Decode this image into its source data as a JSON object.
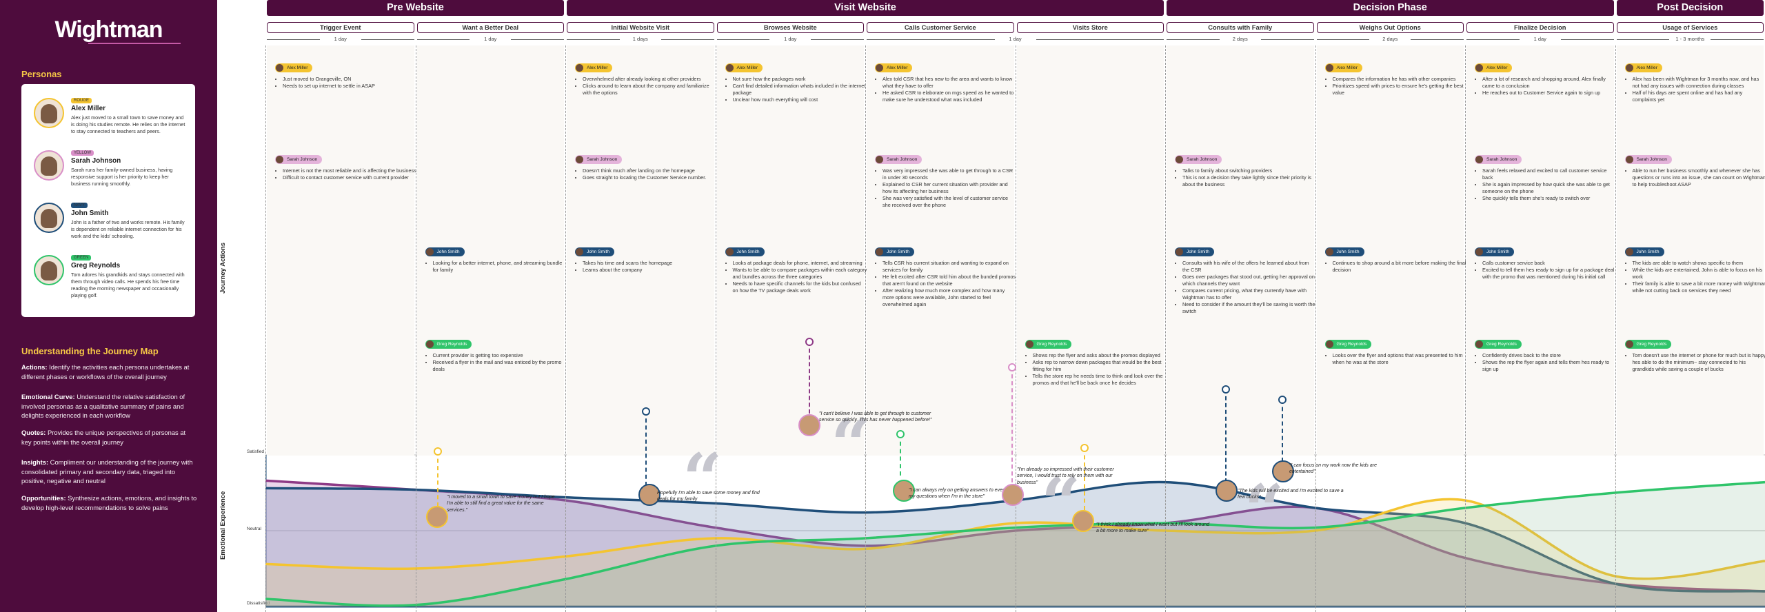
{
  "brand": "Wightman",
  "personas_title": "Personas",
  "personas": [
    {
      "tag": "ROUGE",
      "name": "Alex Miller",
      "desc": "Alex just moved to a small town to save money and is doing his studies remote. He relies on the internet to stay connected to teachers and peers.",
      "color": "#f4c430"
    },
    {
      "tag": "YELLOW",
      "name": "Sarah Johnson",
      "desc": "Sarah runs her family-owned business, having responsive support is her priority to keep her business running smoothly.",
      "color": "#d98fc8"
    },
    {
      "tag": "NAVY",
      "name": "John Smith",
      "desc": "John is a father of two and works remote. His family is dependent on reliable internet connection for his work and the kids' schooling.",
      "color": "#1f4e79"
    },
    {
      "tag": "GREEN",
      "name": "Greg Reynolds",
      "desc": "Tom adores his grandkids and stays connected with them through video calls. He spends his free time reading the morning newspaper and occasionally playing golf.",
      "color": "#2fc46a"
    }
  ],
  "ujm_title": "Understanding the Journey Map",
  "ujm": [
    {
      "label": "Actions:",
      "text": " Identify the activities each persona undertakes at different phases or workflows of the overall journey"
    },
    {
      "label": "Emotional Curve:",
      "text": " Understand the relative satisfaction of involved personas as a qualitative summary of pains and delights experienced in each workflow"
    },
    {
      "label": "Quotes:",
      "text": "  Provides the unique perspectives of personas at key points within the overall journey"
    },
    {
      "label": "Insights:",
      "text": " Compliment our understanding of the journey with consolidated primary and secondary data, triaged into positive, negative and neutral"
    },
    {
      "label": "Opportunities:",
      "text": " Synthesize actions, emotions, and insights to develop high-level recommendations to solve pains"
    }
  ],
  "axis": {
    "actions": "Journey Actions",
    "emotion": "Emotional Experience",
    "satisfied": "Satisfied",
    "neutral": "Neutral",
    "dissatisfied": "Dissatisfied"
  },
  "phases": [
    {
      "name": "Pre Website",
      "start": 0,
      "span": 2
    },
    {
      "name": "Visit Website",
      "start": 2,
      "span": 4
    },
    {
      "name": "Decision Phase",
      "start": 6,
      "span": 3
    },
    {
      "name": "Post Decision",
      "start": 9,
      "span": 1
    }
  ],
  "steps": [
    "Trigger Event",
    "Want a Better Deal",
    "Initial Website Visit",
    "Browses Website",
    "Calls Customer Service",
    "Visits Store",
    "Consults with Family",
    "Weighs Out Options",
    "Finalize Decision",
    "Usage of Services"
  ],
  "durations": [
    {
      "label": "1 day",
      "start": 0,
      "span": 1
    },
    {
      "label": "1 day",
      "start": 1,
      "span": 1
    },
    {
      "label": "1 days",
      "start": 2,
      "span": 1
    },
    {
      "label": "1 day",
      "start": 3,
      "span": 1
    },
    {
      "label": "1 day",
      "start": 4,
      "span": 2
    },
    {
      "label": "2 days",
      "start": 6,
      "span": 1
    },
    {
      "label": "2 days",
      "start": 7,
      "span": 1
    },
    {
      "label": "1 day",
      "start": 8,
      "span": 1
    },
    {
      "label": "1 - 3 months",
      "start": 9,
      "span": 1
    }
  ],
  "cards": [
    {
      "col": 0,
      "row": 0,
      "persona": 0,
      "items": [
        "Just moved to Orangeville, ON",
        "Needs to set up internet to settle in ASAP"
      ]
    },
    {
      "col": 0,
      "row": 1,
      "persona": 1,
      "items": [
        "Internet is not the most reliable and is affecting the business",
        "Difficult to contact customer service with current provider"
      ]
    },
    {
      "col": 1,
      "row": 2,
      "persona": 2,
      "items": [
        "Looking for a better internet, phone, and streaming bundle for family"
      ]
    },
    {
      "col": 1,
      "row": 3,
      "persona": 3,
      "items": [
        "Current provider is getting too expensive",
        "Received a flyer in the mail and was enticed by the promo deals"
      ]
    },
    {
      "col": 2,
      "row": 0,
      "persona": 0,
      "items": [
        "Overwhelmed after already looking at other providers",
        "Clicks around to learn about the company and familiarize with the options"
      ]
    },
    {
      "col": 2,
      "row": 1,
      "persona": 1,
      "items": [
        "Doesn't think much after landing on the homepage",
        "Goes straight to locating the Customer Service number."
      ]
    },
    {
      "col": 2,
      "row": 2,
      "persona": 2,
      "items": [
        "Takes his time and scans the homepage",
        "Learns about the company"
      ]
    },
    {
      "col": 3,
      "row": 0,
      "persona": 0,
      "items": [
        "Not sure how the packages work",
        "Can't find detailed information whats included in the internet package",
        "Unclear how much everything will cost"
      ]
    },
    {
      "col": 3,
      "row": 2,
      "persona": 2,
      "items": [
        "Looks at package deals for phone, internet, and streaming",
        "Wants to be able to compare packages within each category and bundles across the three categories",
        "Needs to have specific channels for the kids but confused on how the TV package deals work"
      ]
    },
    {
      "col": 4,
      "row": 0,
      "persona": 0,
      "items": [
        "Alex told CSR that hes new to the area and wants to know what they have to offer",
        "He asked CSR to elaborate on mgs speed as he wanted to make sure he understood what was included"
      ]
    },
    {
      "col": 4,
      "row": 1,
      "persona": 1,
      "items": [
        "Was very impressed she was able to get through to a CSR in under 30 seconds",
        "Explained to CSR her current situation with provider and how its affecting her business",
        "She was very satisfied with the level of customer service she received  over the phone"
      ]
    },
    {
      "col": 4,
      "row": 2,
      "persona": 2,
      "items": [
        "Tells CSR his current situation and wanting to expand on services for family",
        "He felt excited after CSR told him about the bunded promos that aren't found on the website",
        "After realizing how much more complex and how many more options were available, John started to feel overwhelmed again"
      ]
    },
    {
      "col": 5,
      "row": 3,
      "persona": 3,
      "items": [
        "Shows rep the flyer and asks about the promos displayed",
        "Asks rep to narrow down packages that would be the best fitting for him",
        "Tells the store rep he needs time to think and look over the promos and that he'll be back once he decides"
      ]
    },
    {
      "col": 6,
      "row": 1,
      "persona": 1,
      "items": [
        "Talks to family about switching providers",
        "This is not a decision they take lightly since their priority is about the business"
      ]
    },
    {
      "col": 6,
      "row": 2,
      "persona": 2,
      "items": [
        "Consults with his wife of the offers he learned about from the CSR",
        "Goes over packages that stood out, getting her approval on which channels they want",
        "Compares current pricing, what they currently have with Wightman has to offer",
        "Need to consider if the amount they'll be saving is worth the switch"
      ]
    },
    {
      "col": 7,
      "row": 0,
      "persona": 0,
      "items": [
        "Compares the information he has with other companies",
        "Prioritizes speed with prices to ensure he's getting the best value"
      ]
    },
    {
      "col": 7,
      "row": 2,
      "persona": 2,
      "items": [
        "Continues to shop around a bit more before making the final decision"
      ]
    },
    {
      "col": 7,
      "row": 3,
      "persona": 3,
      "items": [
        "Looks over the flyer and options that was presented to him when he was at the store"
      ]
    },
    {
      "col": 8,
      "row": 0,
      "persona": 0,
      "items": [
        "After a lot of research and shopping around, Alex finally came to a conclusion",
        "He reaches out to Customer Service again to sign up"
      ]
    },
    {
      "col": 8,
      "row": 1,
      "persona": 1,
      "items": [
        "Sarah feels relaxed and excited to call customer service back",
        "She is again impressed by how quick she was able to get someone on the phone",
        "She quickly tells them she's ready to switch over"
      ]
    },
    {
      "col": 8,
      "row": 2,
      "persona": 2,
      "items": [
        "Calls customer service back",
        "Excited to tell them hes ready to sign up for a package deal with the promo that was mentioned during his initial call"
      ]
    },
    {
      "col": 8,
      "row": 3,
      "persona": 3,
      "items": [
        "Confidently drives back to the store",
        "Shows the rep the flyer again and tells them hes ready to sign up"
      ]
    },
    {
      "col": 9,
      "row": 0,
      "persona": 0,
      "items": [
        "Alex has been with Wightman for 3 months now, and has not had any issues with connection during classes",
        "Half of his days are spent online and has had any complaints yet"
      ]
    },
    {
      "col": 9,
      "row": 1,
      "persona": 1,
      "items": [
        "Able to run her business smoothly and whenever she has questions or runs into an issue, she can count on Wightman to help troubleshoot ASAP"
      ]
    },
    {
      "col": 9,
      "row": 2,
      "persona": 2,
      "items": [
        "The kids are able to watch shows specific to them",
        "While the kids are entertained, John is able to focus on his work",
        "Their family is able to save a bit more money with Wightman while not cutting back on services they need"
      ]
    },
    {
      "col": 9,
      "row": 3,
      "persona": 3,
      "items": [
        "Tom doesn't use the internet or phone for much but is happy hes able to do the minimum~ stay connected to his grandkids while saving a couple of bucks"
      ]
    }
  ],
  "quotes": [
    {
      "persona": 0,
      "text": "\"I moved to a small town to save money but I hope I'm able to still find a great value for the same services.\""
    },
    {
      "persona": 2,
      "text": "Hopefully I'm able to save some money and find deals for my family"
    },
    {
      "persona": 1,
      "text": "\"I can't believe I was able to get through to customer service so quickly. This has never happened before!\""
    },
    {
      "persona": 3,
      "text": "\"I can always rely on getting answers to every one of my questions when I'm in the store\""
    },
    {
      "persona": 1,
      "text": "\"I'm already so impressed with their customer service, I would trust to rely on them with our business\""
    },
    {
      "persona": 0,
      "text": "\"I think I already know what I want but I'll look around a bit more to make sure\""
    },
    {
      "persona": 2,
      "text": "\"The kids will be excited and I'm excited to save a few bucks\""
    },
    {
      "persona": 2,
      "text": "\"I can focus on my work now the kids are entertained\""
    }
  ],
  "curves": [
    {
      "persona": "Sarah Johnson",
      "color": "#8e3a86",
      "fill": "rgba(200,150,200,0.38)",
      "y": [
        0.83,
        0.77,
        0.7,
        0.52,
        0.4,
        0.5,
        0.55,
        0.65,
        0.32,
        0.15,
        0.1
      ]
    },
    {
      "persona": "John Smith",
      "color": "#1f4e79",
      "fill": "rgba(110,140,180,0.28)",
      "y": [
        0.78,
        0.77,
        0.72,
        0.68,
        0.62,
        0.7,
        0.82,
        0.65,
        0.55,
        0.15,
        0.1
      ]
    },
    {
      "persona": "Alex Miller",
      "color": "#f4c430",
      "fill": "rgba(240,210,100,0.22)",
      "y": [
        0.28,
        0.25,
        0.33,
        0.45,
        0.38,
        0.55,
        0.5,
        0.5,
        0.7,
        0.2,
        0.3
      ]
    },
    {
      "persona": "Greg Reynolds",
      "color": "#2fc46a",
      "fill": "rgba(120,180,140,0.18)",
      "y": [
        0.05,
        0.01,
        0.18,
        0.4,
        0.45,
        0.52,
        0.55,
        0.52,
        0.65,
        0.75,
        0.82
      ]
    }
  ]
}
